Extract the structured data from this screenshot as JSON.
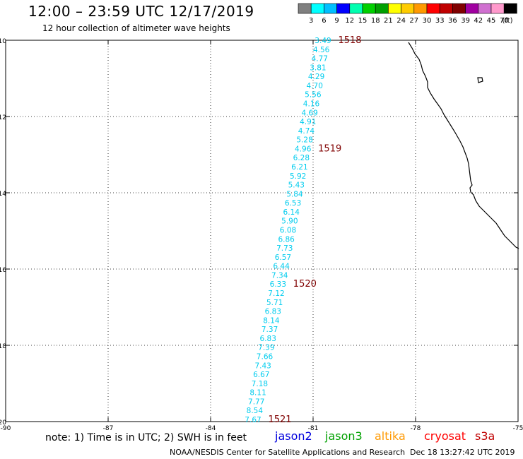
{
  "header": {
    "title": "12:00 – 23:59 UTC 12/17/2019",
    "subtitle": "12 hour collection of altimeter wave heights"
  },
  "colorbar": {
    "unit": "(ft)",
    "colors": [
      "#808080",
      "#00ffff",
      "#00bfff",
      "#0000ff",
      "#00ffb0",
      "#00d000",
      "#00a000",
      "#ffff00",
      "#ffcc00",
      "#ff9900",
      "#ff0000",
      "#c00000",
      "#800000",
      "#a000a0",
      "#d070d0",
      "#ff99cc",
      "#000000"
    ],
    "labels": [
      "3",
      "6",
      "9",
      "12",
      "15",
      "18",
      "21",
      "24",
      "27",
      "30",
      "33",
      "36",
      "39",
      "42",
      "45",
      "70"
    ]
  },
  "map": {
    "x_ticks": [
      "-90",
      "-87",
      "-84",
      "-81",
      "-78",
      "-75"
    ],
    "y_ticks": [
      "-10",
      "-12",
      "-14",
      "-16",
      "-18",
      "-20"
    ],
    "track_color": "#00ccee",
    "track_values": [
      "3.49",
      "4.56",
      "4.77",
      "3.81",
      "4.29",
      "4.70",
      "5.56",
      "4.16",
      "4.69",
      "4.91",
      "4.74",
      "5.28",
      "4.96",
      "6.28",
      "6.21",
      "5.92",
      "5.43",
      "5.84",
      "6.53",
      "6.14",
      "5.90",
      "6.08",
      "6.86",
      "7.73",
      "6.57",
      "6.44",
      "7.34",
      "6.33",
      "7.12",
      "5.71",
      "6.83",
      "8.14",
      "7.37",
      "6.83",
      "7.39",
      "7.66",
      "7.43",
      "6.67",
      "7.18",
      "8.11",
      "7.77",
      "8.54",
      "7.67"
    ],
    "time_labels": [
      "1518",
      "1519",
      "1520",
      "1521"
    ],
    "time_color": "#800000"
  },
  "footer": {
    "note": "note: 1) Time is in UTC; 2) SWH is in feet",
    "satellites": [
      {
        "name": "jason2",
        "color": "#0000dd"
      },
      {
        "name": "jason3",
        "color": "#00a000"
      },
      {
        "name": "altika",
        "color": "#ff9900"
      },
      {
        "name": "cryosat",
        "color": "#ff0000"
      },
      {
        "name": "s3a",
        "color": "#c00000"
      }
    ],
    "credit": "NOAA/NESDIS Center for Satellite Applications and Research",
    "stamp": "Dec 18 13:27:42 UTC 2019"
  }
}
